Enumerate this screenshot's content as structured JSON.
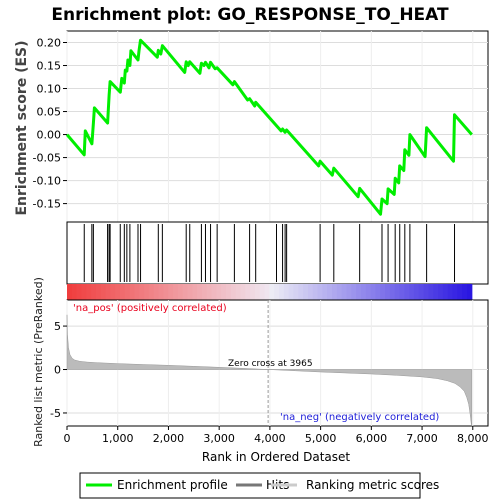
{
  "chart_data": {
    "type": "line",
    "title": "Enrichment plot: GO_RESPONSE_TO_HEAT",
    "panel_es": {
      "ylabel": "Enrichment score (ES)",
      "ylim": [
        -0.19,
        0.225
      ],
      "yticks": [
        -0.15,
        -0.1,
        -0.05,
        0.0,
        0.05,
        0.1,
        0.15,
        0.2
      ],
      "ytick_labels": [
        "-0.15",
        "-0.10",
        "-0.05",
        "0.00",
        "0.05",
        "0.10",
        "0.15",
        "0.20"
      ],
      "grid": true,
      "series": [
        {
          "name": "Enrichment profile",
          "color": "#00ee00",
          "x": [
            0,
            340,
            360,
            490,
            520,
            540,
            800,
            830,
            850,
            1050,
            1080,
            1130,
            1150,
            1180,
            1200,
            1240,
            1260,
            1400,
            1420,
            1450,
            1780,
            1800,
            1850,
            1880,
            2320,
            2350,
            2390,
            2420,
            2620,
            2650,
            2700,
            2730,
            2800,
            2830,
            2920,
            2960,
            3270,
            3300,
            3560,
            3600,
            3700,
            3720,
            4220,
            4250,
            4300,
            4330,
            4960,
            4990,
            5230,
            5260,
            5740,
            5770,
            6180,
            6210,
            6310,
            6330,
            6450,
            6470,
            6540,
            6560,
            6640,
            6660,
            6740,
            6760,
            7060,
            7090,
            7620,
            7640,
            7980
          ],
          "y": [
            0.0,
            -0.044,
            0.008,
            -0.02,
            0.025,
            0.058,
            0.025,
            0.085,
            0.115,
            0.092,
            0.122,
            0.112,
            0.14,
            0.138,
            0.162,
            0.15,
            0.182,
            0.162,
            0.182,
            0.205,
            0.168,
            0.183,
            0.175,
            0.193,
            0.135,
            0.158,
            0.15,
            0.158,
            0.133,
            0.155,
            0.15,
            0.157,
            0.145,
            0.157,
            0.143,
            0.145,
            0.108,
            0.115,
            0.075,
            0.078,
            0.062,
            0.07,
            0.008,
            0.012,
            0.005,
            0.01,
            -0.068,
            -0.058,
            -0.088,
            -0.073,
            -0.135,
            -0.117,
            -0.173,
            -0.14,
            -0.15,
            -0.118,
            -0.13,
            -0.095,
            -0.105,
            -0.068,
            -0.078,
            -0.033,
            -0.045,
            0.0,
            -0.048,
            0.015,
            -0.058,
            0.043,
            0.0
          ]
        }
      ]
    },
    "panel_hits": {
      "name": "Hits",
      "positions": [
        340,
        490,
        520,
        800,
        830,
        850,
        1050,
        1130,
        1180,
        1240,
        1400,
        1450,
        1800,
        1880,
        2350,
        2420,
        2650,
        2730,
        2830,
        2960,
        3300,
        3600,
        3720,
        4130,
        4250,
        4300,
        4330,
        4990,
        5260,
        5770,
        6210,
        6330,
        6470,
        6560,
        6660,
        6760,
        7090,
        7640
      ]
    },
    "panel_rank": {
      "ylabel": "Ranked list metric (PreRanked)",
      "xlabel": "Rank in Ordered Dataset",
      "ylim": [
        -6.5,
        8
      ],
      "yticks": [
        -5,
        0,
        5
      ],
      "ytick_labels": [
        "-5",
        "0",
        "5"
      ],
      "xlim": [
        0,
        8300
      ],
      "xticks": [
        0,
        1000,
        2000,
        3000,
        4000,
        5000,
        6000,
        7000,
        8000
      ],
      "xtick_labels": [
        "0",
        "1,000",
        "2,000",
        "3,000",
        "4,000",
        "5,000",
        "6,000",
        "7,000",
        "8,000"
      ],
      "grid": true,
      "profile": {
        "x": [
          0,
          10,
          30,
          60,
          100,
          150,
          250,
          400,
          600,
          1000,
          1500,
          2000,
          2500,
          3000,
          3500,
          3965,
          4500,
          5000,
          5500,
          6000,
          6500,
          7000,
          7300,
          7500,
          7650,
          7750,
          7830,
          7880,
          7920,
          7950,
          7970,
          7980
        ],
        "y": [
          6.3,
          4.0,
          2.5,
          1.7,
          1.3,
          1.1,
          0.95,
          0.85,
          0.78,
          0.68,
          0.58,
          0.48,
          0.37,
          0.26,
          0.13,
          0.0,
          -0.15,
          -0.28,
          -0.4,
          -0.52,
          -0.66,
          -0.85,
          -1.05,
          -1.3,
          -1.6,
          -2.0,
          -2.5,
          -3.2,
          -4.0,
          -5.2,
          -6.3,
          -6.5
        ]
      },
      "zero_cross": 3965,
      "zero_cross_label": "Zero cross at 3965",
      "pos_label": "'na_pos' (positively correlated)",
      "neg_label": "'na_neg' (negatively correlated)"
    },
    "legend": [
      {
        "label": "Enrichment profile",
        "color": "#00ee00"
      },
      {
        "label": "Hits",
        "color": "#777777"
      },
      {
        "label": "Ranking metric scores",
        "color": "#cccccc"
      }
    ],
    "x_range": [
      0,
      8300
    ],
    "n_genes": 7980
  }
}
